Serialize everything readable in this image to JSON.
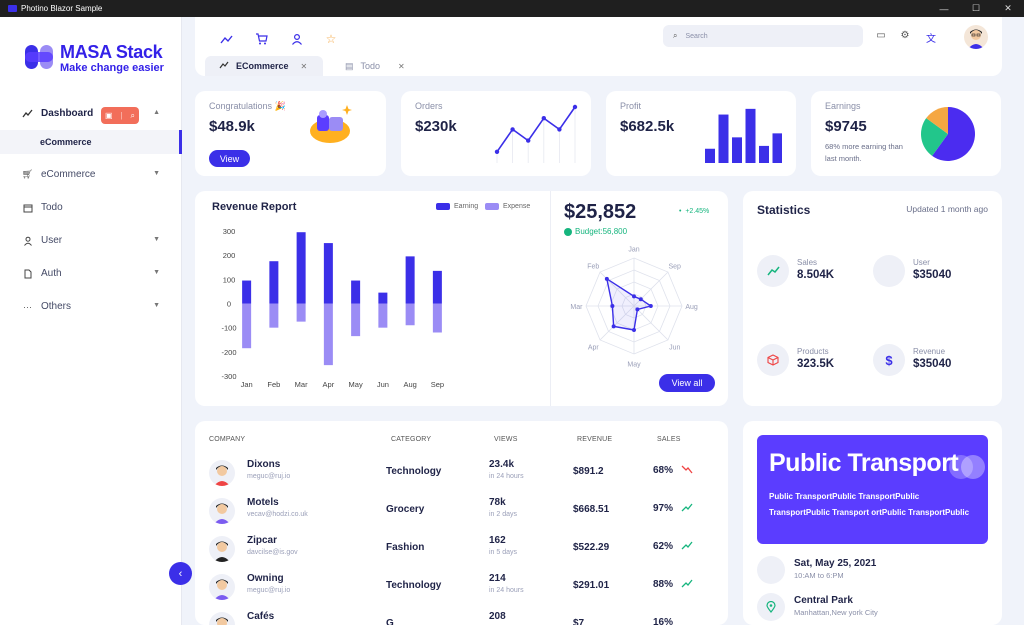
{
  "window": {
    "title": "Photino Blazor Sample",
    "controls": [
      "—",
      "☐",
      "✕"
    ]
  },
  "sidebar": {
    "logo_title": "MASA Stack",
    "logo_subtitle": "Make change easier",
    "items": [
      {
        "label": "Dashboard",
        "icon": "trending-up-icon"
      },
      {
        "label": "eCommerce",
        "icon": "cart-icon"
      },
      {
        "label": "Todo",
        "icon": "calendar-icon"
      },
      {
        "label": "User",
        "icon": "user-icon"
      },
      {
        "label": "Auth",
        "icon": "file-icon"
      },
      {
        "label": "Others",
        "icon": "dots-icon"
      }
    ],
    "sub_item": "eCommerce"
  },
  "header": {
    "search_placeholder": "Search",
    "tabs": [
      {
        "label": "ECommerce"
      },
      {
        "label": "Todo"
      }
    ]
  },
  "kpis": {
    "congrats": {
      "title": "Congratulations 🎉",
      "value": "$48.9k",
      "button": "View"
    },
    "orders": {
      "title": "Orders",
      "value": "$230k"
    },
    "profit": {
      "title": "Profit",
      "value": "$682.5k"
    },
    "earnings": {
      "title": "Earnings",
      "value": "$9745",
      "desc": "68% more earning than last month."
    }
  },
  "revenue": {
    "title": "Revenue Report",
    "legend_earning": "Earning",
    "legend_expense": "Expense",
    "big_value": "$25,852",
    "change": "+2.45%",
    "budget": "Budget:56,800",
    "button": "View all"
  },
  "statistics": {
    "title": "Statistics",
    "updated": "Updated 1 month ago",
    "items": [
      {
        "label": "Sales",
        "value": "8.504K"
      },
      {
        "label": "User",
        "value": "$35040"
      },
      {
        "label": "Products",
        "value": "323.5K"
      },
      {
        "label": "Revenue",
        "value": "$35040"
      }
    ]
  },
  "table": {
    "headers": [
      "COMPANY",
      "CATEGORY",
      "VIEWS",
      "REVENUE",
      "SALES"
    ],
    "rows": [
      {
        "name": "Dixons",
        "email": "meguc@ruj.io",
        "category": "Technology",
        "views": "23.4k",
        "time": "in 24 hours",
        "revenue": "$891.2",
        "sales": "68%",
        "trend": "down"
      },
      {
        "name": "Motels",
        "email": "vecav@hodzi.co.uk",
        "category": "Grocery",
        "views": "78k",
        "time": "in 2 days",
        "revenue": "$668.51",
        "sales": "97%",
        "trend": "up"
      },
      {
        "name": "Zipcar",
        "email": "davcilse@is.gov",
        "category": "Fashion",
        "views": "162",
        "time": "in 5 days",
        "revenue": "$522.29",
        "sales": "62%",
        "trend": "up"
      },
      {
        "name": "Owning",
        "email": "meguc@ruj.io",
        "category": "Technology",
        "views": "214",
        "time": "in 24 hours",
        "revenue": "$291.01",
        "sales": "88%",
        "trend": "up"
      },
      {
        "name": "Cafés",
        "email": "",
        "category": "G",
        "views": "208",
        "time": "",
        "revenue": "$7",
        "sales": "16%",
        "trend": "down"
      }
    ]
  },
  "transport": {
    "title": "Public Transport",
    "text": "Public TransportPublic TransportPublic TransportPublic Transport ortPublic TransportPublic",
    "events": [
      {
        "title": "Sat,  May 25,  2021",
        "sub": "10:AM to 6:PM"
      },
      {
        "title": "Central Park",
        "sub": "Manhattan,New york City"
      }
    ]
  },
  "colors": {
    "primary": "#3b2fe8",
    "expense": "#9b8cf5",
    "success": "#16b57e",
    "danger": "#ef4444"
  },
  "chart_data": [
    {
      "type": "bar",
      "title": "Revenue Report",
      "categories": [
        "Jan",
        "Feb",
        "Mar",
        "Apr",
        "May",
        "Jun",
        "Aug",
        "Sep"
      ],
      "series": [
        {
          "name": "Earning",
          "values": [
            95,
            175,
            295,
            250,
            95,
            45,
            195,
            135
          ]
        },
        {
          "name": "Expense",
          "values": [
            -185,
            -100,
            -75,
            -255,
            -135,
            -100,
            -90,
            -120
          ]
        }
      ],
      "ylim": [
        -300,
        300
      ],
      "yticks": [
        300,
        200,
        100,
        0,
        -100,
        -200,
        -300
      ]
    },
    {
      "type": "line",
      "title": "Orders",
      "values": [
        2,
        6,
        4,
        8,
        6,
        10
      ]
    },
    {
      "type": "bar",
      "title": "Profit",
      "values": [
        25,
        85,
        45,
        95,
        30,
        52
      ]
    },
    {
      "type": "pie",
      "title": "Earnings",
      "values": [
        60,
        25,
        15
      ],
      "colors": [
        "#4b2cf0",
        "#22c68b",
        "#f5a742"
      ]
    },
    {
      "type": "radar",
      "categories": [
        "Jan",
        "Sep",
        "Aug",
        "Jun",
        "May",
        "Apr",
        "Mar",
        "Feb"
      ],
      "values": [
        0.2,
        0.2,
        0.35,
        0.1,
        0.5,
        0.6,
        0.45,
        0.8
      ]
    }
  ]
}
